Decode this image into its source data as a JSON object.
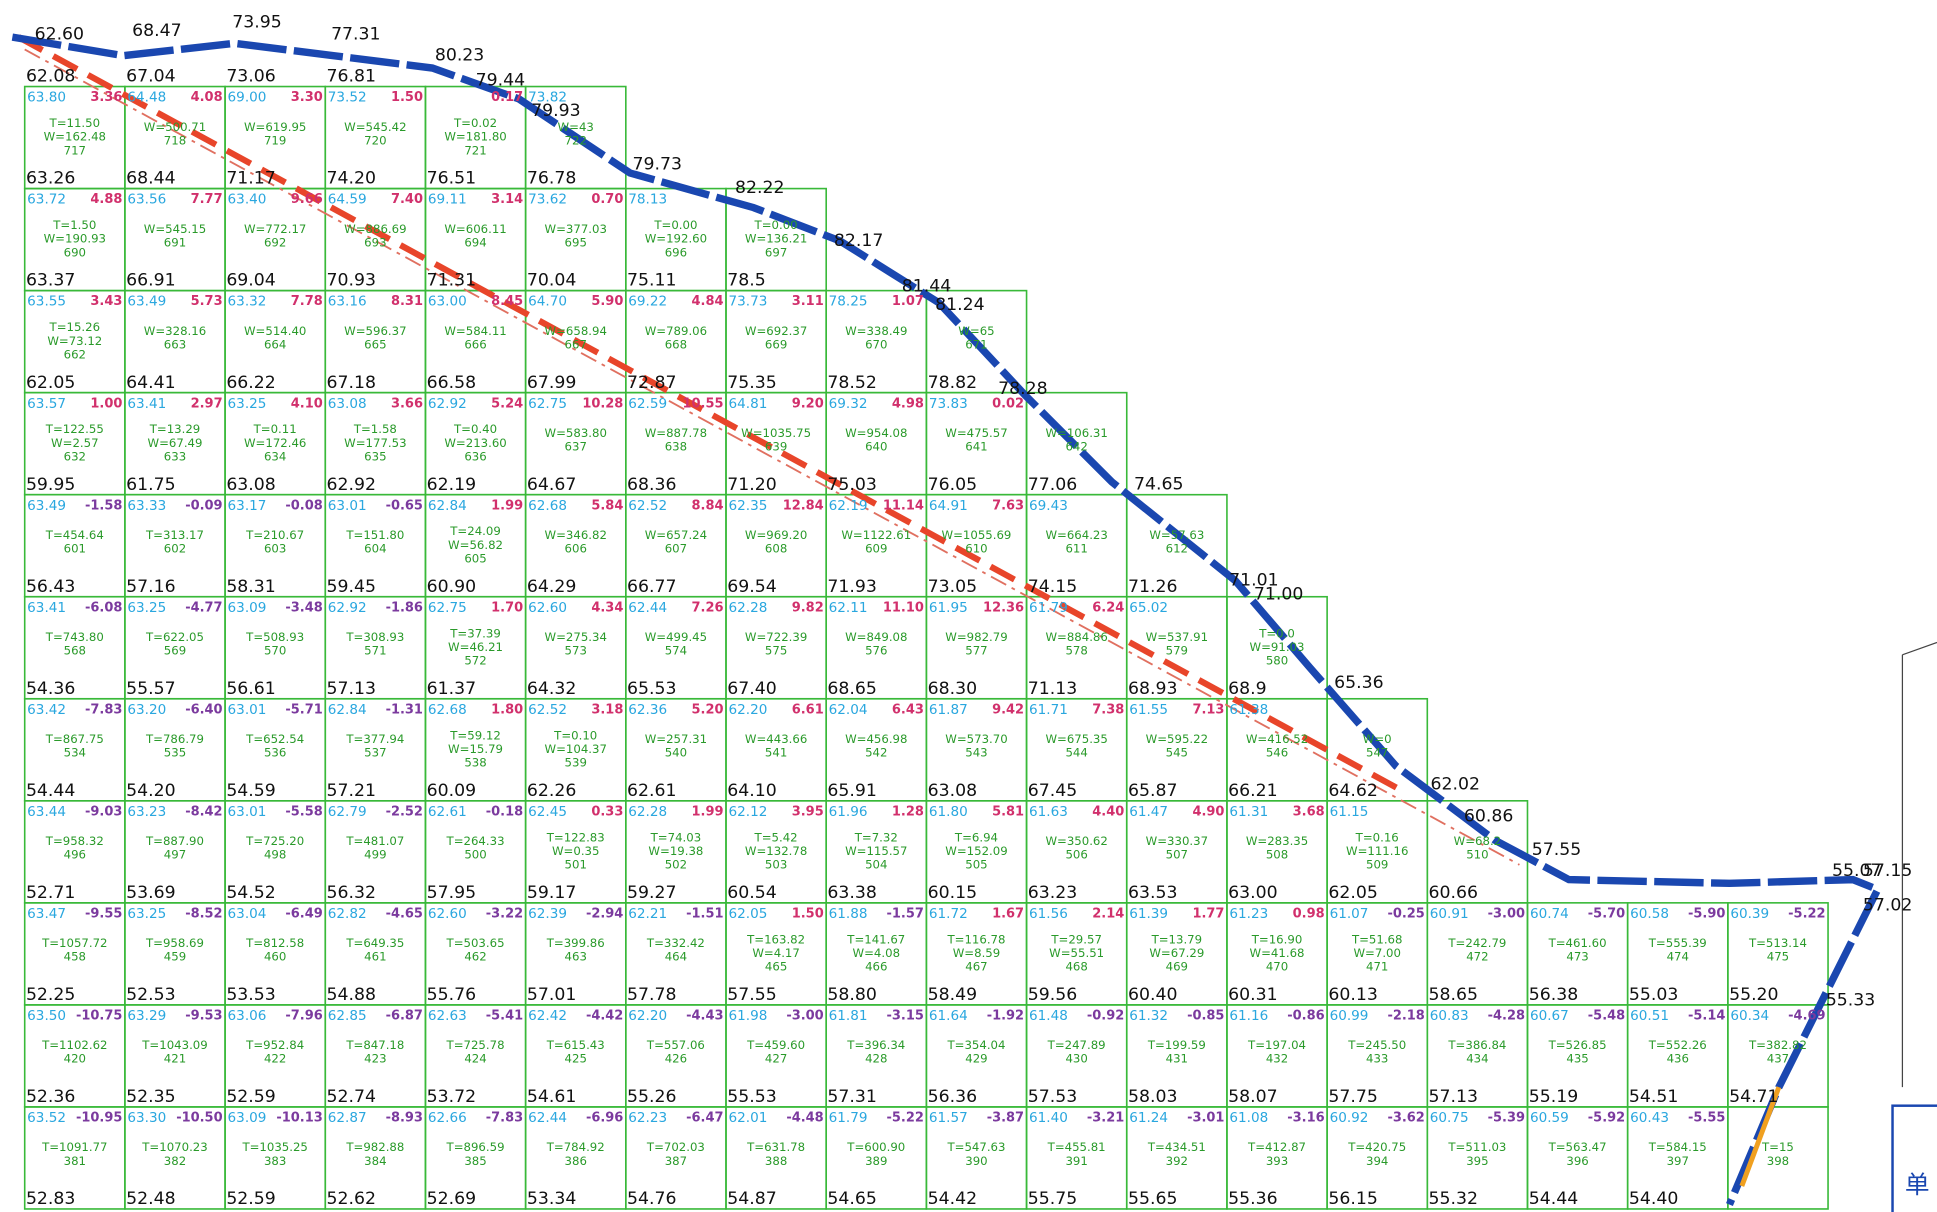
{
  "top_nodes": [
    "62.08",
    "67.04",
    "73.06",
    "76.81"
  ],
  "boundary_labels": [
    "62.60",
    "68.47",
    "73.95",
    "77.31",
    "80.23",
    "79.44",
    "79.93",
    "79.73",
    "82.22",
    "82.17",
    "81.44",
    "81.24",
    "78.28",
    "74.65",
    "71.01",
    "71.00",
    "65.36",
    "62.02",
    "60.86",
    "57.55",
    "55.07",
    "57.15",
    "57.02",
    "55.33"
  ],
  "legend_box": "单",
  "rows": [
    [
      [
        "63.80",
        "3.36",
        [
          "T=11.50",
          "W=162.48"
        ],
        "717",
        "63.26"
      ],
      [
        "64.48",
        "4.08",
        [
          "W=500.71"
        ],
        "718",
        "68.44"
      ],
      [
        "69.00",
        "3.30",
        [
          "W=619.95"
        ],
        "719",
        "71.17"
      ],
      [
        "73.52",
        "1.50",
        [
          "W=545.42"
        ],
        "720",
        "74.20"
      ],
      [
        null,
        "0.17",
        [
          "T=0.02",
          "W=181.80"
        ],
        "721",
        "76.51"
      ],
      [
        "73.82",
        null,
        [
          "W=43"
        ],
        "722",
        "76.78"
      ]
    ],
    [
      [
        "63.72",
        "4.88",
        [
          "T=1.50",
          "W=190.93"
        ],
        "690",
        "63.37"
      ],
      [
        "63.56",
        "7.77",
        [
          "W=545.15"
        ],
        "691",
        "66.91"
      ],
      [
        "63.40",
        "9.66",
        [
          "W=772.17"
        ],
        "692",
        "69.04"
      ],
      [
        "64.59",
        "7.40",
        [
          "W=886.69"
        ],
        "693",
        "70.93"
      ],
      [
        "69.11",
        "3.14",
        [
          "W=606.11"
        ],
        "694",
        "71.31"
      ],
      [
        "73.62",
        "0.70",
        [
          "W=377.03"
        ],
        "695",
        "70.04"
      ],
      [
        "78.13",
        null,
        [
          "T=0.00",
          "W=192.60"
        ],
        "696",
        "75.11"
      ],
      [
        null,
        null,
        [
          "T=0.00",
          "W=136.21"
        ],
        "697",
        "78.5"
      ]
    ],
    [
      [
        "63.55",
        "3.43",
        [
          "T=15.26",
          "W=73.12"
        ],
        "662",
        "62.05"
      ],
      [
        "63.49",
        "5.73",
        [
          "W=328.16"
        ],
        "663",
        "64.41"
      ],
      [
        "63.32",
        "7.78",
        [
          "W=514.40"
        ],
        "664",
        "66.22"
      ],
      [
        "63.16",
        "8.31",
        [
          "W=596.37"
        ],
        "665",
        "67.18"
      ],
      [
        "63.00",
        "8.45",
        [
          "W=584.11"
        ],
        "666",
        "66.58"
      ],
      [
        "64.70",
        "5.90",
        [
          "W=658.94"
        ],
        "667",
        "67.99"
      ],
      [
        "69.22",
        "4.84",
        [
          "W=789.06"
        ],
        "668",
        "72.87"
      ],
      [
        "73.73",
        "3.11",
        [
          "W=692.37"
        ],
        "669",
        "75.35"
      ],
      [
        "78.25",
        "1.07",
        [
          "W=338.49"
        ],
        "670",
        "78.52"
      ],
      [
        null,
        null,
        [
          "W=65"
        ],
        "671",
        "78.82"
      ]
    ],
    [
      [
        "63.57",
        "1.00",
        [
          "T=122.55",
          "W=2.57"
        ],
        "632",
        "59.95"
      ],
      [
        "63.41",
        "2.97",
        [
          "T=13.29",
          "W=67.49"
        ],
        "633",
        "61.75"
      ],
      [
        "63.25",
        "4.10",
        [
          "T=0.11",
          "W=172.46"
        ],
        "634",
        "63.08"
      ],
      [
        "63.08",
        "3.66",
        [
          "T=1.58",
          "W=177.53"
        ],
        "635",
        "62.92"
      ],
      [
        "62.92",
        "5.24",
        [
          "T=0.40",
          "W=213.60"
        ],
        "636",
        "62.19"
      ],
      [
        "62.75",
        "10.28",
        [
          "W=583.80"
        ],
        "637",
        "64.67"
      ],
      [
        "62.59",
        "10.55",
        [
          "W=887.78"
        ],
        "638",
        "68.36"
      ],
      [
        "64.81",
        "9.20",
        [
          "W=1035.75"
        ],
        "639",
        "71.20"
      ],
      [
        "69.32",
        "4.98",
        [
          "W=954.08"
        ],
        "640",
        "75.03"
      ],
      [
        "73.83",
        "0.02",
        [
          "W=475.57"
        ],
        "641",
        "76.05"
      ],
      [
        null,
        null,
        [
          "W=106.31"
        ],
        "642",
        "77.06"
      ]
    ],
    [
      [
        "63.49",
        "-1.58",
        [
          "T=454.64"
        ],
        "601",
        "56.43"
      ],
      [
        "63.33",
        "-0.09",
        [
          "T=313.17"
        ],
        "602",
        "57.16"
      ],
      [
        "63.17",
        "-0.08",
        [
          "T=210.67"
        ],
        "603",
        "58.31"
      ],
      [
        "63.01",
        "-0.65",
        [
          "T=151.80"
        ],
        "604",
        "59.45"
      ],
      [
        "62.84",
        "1.99",
        [
          "T=24.09",
          "W=56.82"
        ],
        "605",
        "60.90"
      ],
      [
        "62.68",
        "5.84",
        [
          "W=346.82"
        ],
        "606",
        "64.29"
      ],
      [
        "62.52",
        "8.84",
        [
          "W=657.24"
        ],
        "607",
        "66.77"
      ],
      [
        "62.35",
        "12.84",
        [
          "W=969.20"
        ],
        "608",
        "69.54"
      ],
      [
        "62.19",
        "11.14",
        [
          "W=1122.61"
        ],
        "609",
        "71.93"
      ],
      [
        "64.91",
        "7.63",
        [
          "W=1055.69"
        ],
        "610",
        "73.05"
      ],
      [
        "69.43",
        null,
        [
          "W=664.23"
        ],
        "611",
        "74.15"
      ],
      [
        null,
        null,
        [
          "W=57.63"
        ],
        "612",
        "71.26"
      ]
    ],
    [
      [
        "63.41",
        "-6.08",
        [
          "T=743.80"
        ],
        "568",
        "54.36"
      ],
      [
        "63.25",
        "-4.77",
        [
          "T=622.05"
        ],
        "569",
        "55.57"
      ],
      [
        "63.09",
        "-3.48",
        [
          "T=508.93"
        ],
        "570",
        "56.61"
      ],
      [
        "62.92",
        "-1.86",
        [
          "T=308.93"
        ],
        "571",
        "57.13"
      ],
      [
        "62.75",
        "1.70",
        [
          "T=37.39",
          "W=46.21"
        ],
        "572",
        "61.37"
      ],
      [
        "62.60",
        "4.34",
        [
          "W=275.34"
        ],
        "573",
        "64.32"
      ],
      [
        "62.44",
        "7.26",
        [
          "W=499.45"
        ],
        "574",
        "65.53"
      ],
      [
        "62.28",
        "9.82",
        [
          "W=722.39"
        ],
        "575",
        "67.40"
      ],
      [
        "62.11",
        "11.10",
        [
          "W=849.08"
        ],
        "576",
        "68.65"
      ],
      [
        "61.95",
        "12.36",
        [
          "W=982.79"
        ],
        "577",
        "68.30"
      ],
      [
        "61.79",
        "6.24",
        [
          "W=884.86"
        ],
        "578",
        "71.13"
      ],
      [
        "65.02",
        null,
        [
          "W=537.91"
        ],
        "579",
        "68.93"
      ],
      [
        null,
        null,
        [
          "T=0.0",
          "W=91.03"
        ],
        "580",
        "68.9"
      ]
    ],
    [
      [
        "63.42",
        "-7.83",
        [
          "T=867.75"
        ],
        "534",
        "54.44"
      ],
      [
        "63.20",
        "-6.40",
        [
          "T=786.79"
        ],
        "535",
        "54.20"
      ],
      [
        "63.01",
        "-5.71",
        [
          "T=652.54"
        ],
        "536",
        "54.59"
      ],
      [
        "62.84",
        "-1.31",
        [
          "T=377.94"
        ],
        "537",
        "57.21"
      ],
      [
        "62.68",
        "1.80",
        [
          "T=59.12",
          "W=15.79"
        ],
        "538",
        "60.09"
      ],
      [
        "62.52",
        "3.18",
        [
          "T=0.10",
          "W=104.37"
        ],
        "539",
        "62.26"
      ],
      [
        "62.36",
        "5.20",
        [
          "W=257.31"
        ],
        "540",
        "62.61"
      ],
      [
        "62.20",
        "6.61",
        [
          "W=443.66"
        ],
        "541",
        "64.10"
      ],
      [
        "62.04",
        "6.43",
        [
          "W=456.98"
        ],
        "542",
        "65.91"
      ],
      [
        "61.87",
        "9.42",
        [
          "W=573.70"
        ],
        "543",
        "63.08"
      ],
      [
        "61.71",
        "7.38",
        [
          "W=675.35"
        ],
        "544",
        "67.45"
      ],
      [
        "61.55",
        "7.13",
        [
          "W=595.22"
        ],
        "545",
        "65.87"
      ],
      [
        "61.38",
        null,
        [
          "W=416.52"
        ],
        "546",
        "66.21"
      ],
      [
        null,
        null,
        [
          "W=0"
        ],
        "547",
        "64.62"
      ]
    ],
    [
      [
        "63.44",
        "-9.03",
        [
          "T=958.32"
        ],
        "496",
        "52.71"
      ],
      [
        "63.23",
        "-8.42",
        [
          "T=887.90"
        ],
        "497",
        "53.69"
      ],
      [
        "63.01",
        "-5.58",
        [
          "T=725.20"
        ],
        "498",
        "54.52"
      ],
      [
        "62.79",
        "-2.52",
        [
          "T=481.07"
        ],
        "499",
        "56.32"
      ],
      [
        "62.61",
        "-0.18",
        [
          "T=264.33"
        ],
        "500",
        "57.95"
      ],
      [
        "62.45",
        "0.33",
        [
          "T=122.83",
          "W=0.35"
        ],
        "501",
        "59.17"
      ],
      [
        "62.28",
        "1.99",
        [
          "T=74.03",
          "W=19.38"
        ],
        "502",
        "59.27"
      ],
      [
        "62.12",
        "3.95",
        [
          "T=5.42",
          "W=132.78"
        ],
        "503",
        "60.54"
      ],
      [
        "61.96",
        "1.28",
        [
          "T=7.32",
          "W=115.57"
        ],
        "504",
        "63.38"
      ],
      [
        "61.80",
        "5.81",
        [
          "T=6.94",
          "W=152.09"
        ],
        "505",
        "60.15"
      ],
      [
        "61.63",
        "4.40",
        [
          "W=350.62"
        ],
        "506",
        "63.23"
      ],
      [
        "61.47",
        "4.90",
        [
          "W=330.37"
        ],
        "507",
        "63.53"
      ],
      [
        "61.31",
        "3.68",
        [
          "W=283.35"
        ],
        "508",
        "63.00"
      ],
      [
        "61.15",
        null,
        [
          "T=0.16",
          "W=111.16"
        ],
        "509",
        "62.05"
      ],
      [
        null,
        null,
        [
          "W=68.2"
        ],
        "510",
        "60.66"
      ]
    ],
    [
      [
        "63.47",
        "-9.55",
        [
          "T=1057.72"
        ],
        "458",
        "52.25"
      ],
      [
        "63.25",
        "-8.52",
        [
          "T=958.69"
        ],
        "459",
        "52.53"
      ],
      [
        "63.04",
        "-6.49",
        [
          "T=812.58"
        ],
        "460",
        "53.53"
      ],
      [
        "62.82",
        "-4.65",
        [
          "T=649.35"
        ],
        "461",
        "54.88"
      ],
      [
        "62.60",
        "-3.22",
        [
          "T=503.65"
        ],
        "462",
        "55.76"
      ],
      [
        "62.39",
        "-2.94",
        [
          "T=399.86"
        ],
        "463",
        "57.01"
      ],
      [
        "62.21",
        "-1.51",
        [
          "T=332.42"
        ],
        "464",
        "57.78"
      ],
      [
        "62.05",
        "1.50",
        [
          "T=163.82",
          "W=4.17"
        ],
        "465",
        "57.55"
      ],
      [
        "61.88",
        "-1.57",
        [
          "T=141.67",
          "W=4.08"
        ],
        "466",
        "58.80"
      ],
      [
        "61.72",
        "1.67",
        [
          "T=116.78",
          "W=8.59"
        ],
        "467",
        "58.49"
      ],
      [
        "61.56",
        "2.14",
        [
          "T=29.57",
          "W=55.51"
        ],
        "468",
        "59.56"
      ],
      [
        "61.39",
        "1.77",
        [
          "T=13.79",
          "W=67.29"
        ],
        "469",
        "60.40"
      ],
      [
        "61.23",
        "0.98",
        [
          "T=16.90",
          "W=41.68"
        ],
        "470",
        "60.31"
      ],
      [
        "61.07",
        "-0.25",
        [
          "T=51.68",
          "W=7.00"
        ],
        "471",
        "60.13"
      ],
      [
        "60.91",
        "-3.00",
        [
          "T=242.79"
        ],
        "472",
        "58.65"
      ],
      [
        "60.74",
        "-5.70",
        [
          "T=461.60"
        ],
        "473",
        "56.38"
      ],
      [
        "60.58",
        "-5.90",
        [
          "T=555.39"
        ],
        "474",
        "55.03"
      ],
      [
        "60.39",
        "-5.22",
        [
          "T=513.14"
        ],
        "475",
        "55.20"
      ]
    ],
    [
      [
        "63.50",
        "-10.75",
        [
          "T=1102.62"
        ],
        "420",
        "52.36"
      ],
      [
        "63.29",
        "-9.53",
        [
          "T=1043.09"
        ],
        "421",
        "52.35"
      ],
      [
        "63.06",
        "-7.96",
        [
          "T=952.84"
        ],
        "422",
        "52.59"
      ],
      [
        "62.85",
        "-6.87",
        [
          "T=847.18"
        ],
        "423",
        "52.74"
      ],
      [
        "62.63",
        "-5.41",
        [
          "T=725.78"
        ],
        "424",
        "53.72"
      ],
      [
        "62.42",
        "-4.42",
        [
          "T=615.43"
        ],
        "425",
        "54.61"
      ],
      [
        "62.20",
        "-4.43",
        [
          "T=557.06"
        ],
        "426",
        "55.26"
      ],
      [
        "61.98",
        "-3.00",
        [
          "T=459.60"
        ],
        "427",
        "55.53"
      ],
      [
        "61.81",
        "-3.15",
        [
          "T=396.34"
        ],
        "428",
        "57.31"
      ],
      [
        "61.64",
        "-1.92",
        [
          "T=354.04"
        ],
        "429",
        "56.36"
      ],
      [
        "61.48",
        "-0.92",
        [
          "T=247.89"
        ],
        "430",
        "57.53"
      ],
      [
        "61.32",
        "-0.85",
        [
          "T=199.59"
        ],
        "431",
        "58.03"
      ],
      [
        "61.16",
        "-0.86",
        [
          "T=197.04"
        ],
        "432",
        "58.07"
      ],
      [
        "60.99",
        "-2.18",
        [
          "T=245.50"
        ],
        "433",
        "57.75"
      ],
      [
        "60.83",
        "-4.28",
        [
          "T=386.84"
        ],
        "434",
        "57.13"
      ],
      [
        "60.67",
        "-5.48",
        [
          "T=526.85"
        ],
        "435",
        "55.19"
      ],
      [
        "60.51",
        "-5.14",
        [
          "T=552.26"
        ],
        "436",
        "54.51"
      ],
      [
        "60.34",
        "-4.69",
        [
          "T=382.82"
        ],
        "437",
        "54.71"
      ]
    ],
    [
      [
        "63.52",
        "-10.95",
        [
          "T=1091.77"
        ],
        "381",
        "52.83"
      ],
      [
        "63.30",
        "-10.50",
        [
          "T=1070.23"
        ],
        "382",
        "52.48"
      ],
      [
        "63.09",
        "-10.13",
        [
          "T=1035.25"
        ],
        "383",
        "52.59"
      ],
      [
        "62.87",
        "-8.93",
        [
          "T=982.88"
        ],
        "384",
        "52.62"
      ],
      [
        "62.66",
        "-7.83",
        [
          "T=896.59"
        ],
        "385",
        "52.69"
      ],
      [
        "62.44",
        "-6.96",
        [
          "T=784.92"
        ],
        "386",
        "53.34"
      ],
      [
        "62.23",
        "-6.47",
        [
          "T=702.03"
        ],
        "387",
        "54.76"
      ],
      [
        "62.01",
        "-4.48",
        [
          "T=631.78"
        ],
        "388",
        "54.87"
      ],
      [
        "61.79",
        "-5.22",
        [
          "T=600.90"
        ],
        "389",
        "54.65"
      ],
      [
        "61.57",
        "-3.87",
        [
          "T=547.63"
        ],
        "390",
        "54.42"
      ],
      [
        "61.40",
        "-3.21",
        [
          "T=455.81"
        ],
        "391",
        "55.75"
      ],
      [
        "61.24",
        "-3.01",
        [
          "T=434.51"
        ],
        "392",
        "55.65"
      ],
      [
        "61.08",
        "-3.16",
        [
          "T=412.87"
        ],
        "393",
        "55.36"
      ],
      [
        "60.92",
        "-3.62",
        [
          "T=420.75"
        ],
        "394",
        "56.15"
      ],
      [
        "60.75",
        "-5.39",
        [
          "T=511.03"
        ],
        "395",
        "55.32"
      ],
      [
        "60.59",
        "-5.92",
        [
          "T=563.47"
        ],
        "396",
        "54.44"
      ],
      [
        "60.43",
        "-5.55",
        [
          "T=584.15"
        ],
        "397",
        "54.40"
      ],
      [
        null,
        null,
        [
          "T=15"
        ],
        "398",
        null
      ]
    ]
  ]
}
